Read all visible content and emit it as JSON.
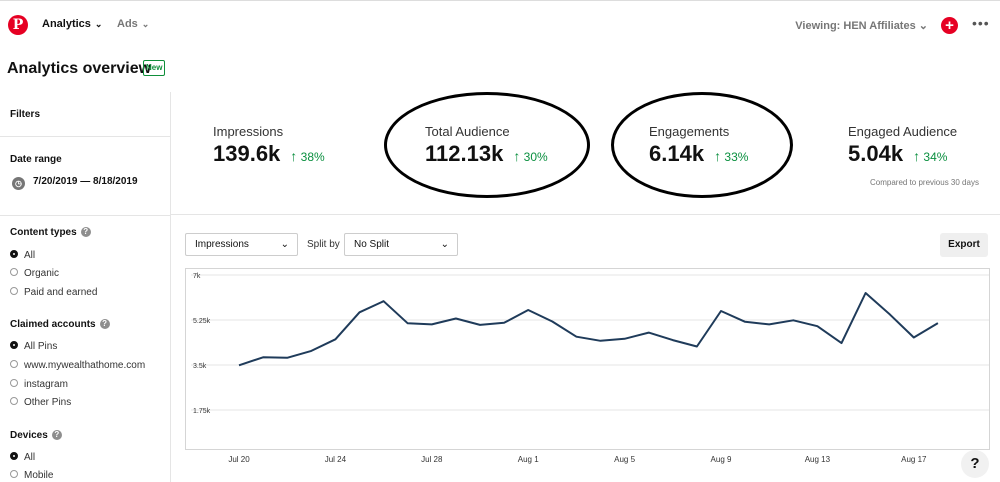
{
  "header": {
    "logo": "P",
    "nav_analytics": "Analytics",
    "nav_ads": "Ads",
    "viewing": "Viewing: HEN Affiliates",
    "plus": "+",
    "more": "•••"
  },
  "page": {
    "title": "Analytics overview",
    "badge": "New"
  },
  "sidebar": {
    "filters": "Filters",
    "date_range_label": "Date range",
    "date_range_value": "7/20/2019 — 8/18/2019",
    "content_types": {
      "label": "Content types",
      "options": [
        "All",
        "Organic",
        "Paid and earned"
      ],
      "selected": "All"
    },
    "claimed_accounts": {
      "label": "Claimed accounts",
      "options": [
        "All Pins",
        "www.mywealthathome.com",
        "instagram",
        "Other Pins"
      ],
      "selected": "All Pins"
    },
    "devices": {
      "label": "Devices",
      "options": [
        "All",
        "Mobile"
      ],
      "selected": "All"
    }
  },
  "metrics": [
    {
      "label": "Impressions",
      "value": "139.6k",
      "delta": "38%"
    },
    {
      "label": "Total Audience",
      "value": "112.13k",
      "delta": "30%"
    },
    {
      "label": "Engagements",
      "value": "6.14k",
      "delta": "33%"
    },
    {
      "label": "Engaged Audience",
      "value": "5.04k",
      "delta": "34%"
    }
  ],
  "compared_note": "Compared to previous 30 days",
  "controls": {
    "metric_select": "Impressions",
    "split_label": "Split by",
    "split_select": "No Split",
    "export": "Export"
  },
  "chart_data": {
    "type": "line",
    "series": [
      {
        "name": "Impressions",
        "values": [
          3490,
          3800,
          3780,
          4050,
          4500,
          5550,
          5980,
          5120,
          5080,
          5310,
          5060,
          5140,
          5640,
          5190,
          4600,
          4440,
          4520,
          4760,
          4470,
          4220,
          5600,
          5180,
          5080,
          5240,
          5010,
          4350,
          6300,
          5470,
          4570,
          5130
        ]
      }
    ],
    "x_tick_labels": [
      "Jul 20",
      "Jul 24",
      "Jul 28",
      "Aug 1",
      "Aug 5",
      "Aug 9",
      "Aug 13",
      "Aug 17"
    ],
    "y_tick_labels": [
      "7k",
      "5.25k",
      "3.5k",
      "1.75k"
    ],
    "y_ticks": [
      7000,
      5250,
      3500,
      1750
    ],
    "ylim": [
      0,
      7000
    ],
    "line_color": "#1f3b5a"
  },
  "help": "?"
}
